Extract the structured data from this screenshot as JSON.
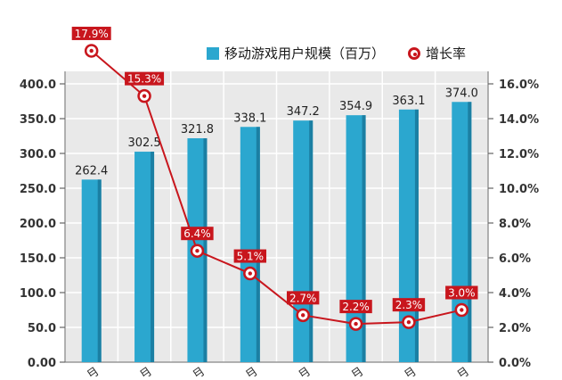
{
  "chart_data": {
    "type": "bar+line",
    "categories": [
      "月",
      "月",
      "月",
      "月",
      "月",
      "月",
      "月",
      "月"
    ],
    "series": [
      {
        "name": "移动游戏用户规模（百万）",
        "type": "bar",
        "axis": "left",
        "values": [
          262.4,
          302.5,
          321.8,
          338.1,
          347.2,
          354.9,
          363.1,
          374.0
        ],
        "labels": [
          "262.4",
          "302.5",
          "321.8",
          "338.1",
          "347.2",
          "354.9",
          "363.1",
          "374.0"
        ]
      },
      {
        "name": "增长率",
        "type": "line",
        "axis": "right",
        "values": [
          17.9,
          15.3,
          6.4,
          5.1,
          2.7,
          2.2,
          2.3,
          3.0
        ],
        "labels": [
          "17.9%",
          "15.3%",
          "6.4%",
          "5.1%",
          "2.7%",
          "2.2%",
          "2.3%",
          "3.0%"
        ]
      }
    ],
    "y_left": {
      "min": 0,
      "max": 400,
      "step": 50,
      "ticks": [
        "0.00",
        "50.0",
        "100.0",
        "150.0",
        "200.0",
        "250.0",
        "300.0",
        "350.0",
        "400.0"
      ]
    },
    "y_right": {
      "min": 0,
      "max": 16,
      "step": 2,
      "ticks": [
        "0.0%",
        "2.0%",
        "4.0%",
        "6.0%",
        "8.0%",
        "10.0%",
        "12.0%",
        "14.0%",
        "16.0%"
      ]
    },
    "grid": true,
    "legend": "top-right",
    "colors": {
      "bar": "#2ba7cf",
      "bar_dark": "#1b7fa3",
      "line": "#c8161d",
      "grid": "#bfbfbf",
      "plot_bg": "#e9e9e9"
    }
  }
}
